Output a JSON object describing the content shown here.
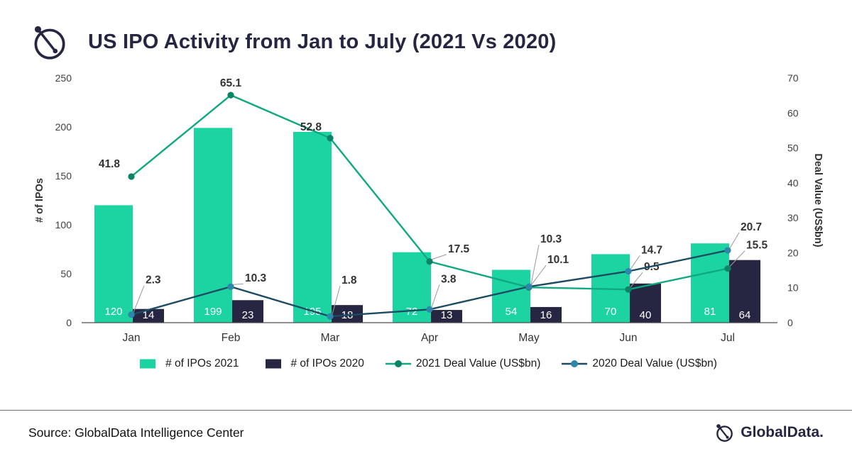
{
  "header": {
    "title": "US IPO Activity from Jan to July (2021 Vs 2020)"
  },
  "chart_data": {
    "type": "combo",
    "categories": [
      "Jan",
      "Feb",
      "Mar",
      "Apr",
      "May",
      "Jun",
      "Jul"
    ],
    "series": [
      {
        "name": "# of IPOs 2021",
        "type": "bar",
        "axis": "left",
        "color": "#1BD4A2",
        "values": [
          120,
          199,
          195,
          72,
          54,
          70,
          81
        ]
      },
      {
        "name": "# of IPOs 2020",
        "type": "bar",
        "axis": "left",
        "color": "#262642",
        "values": [
          14,
          23,
          18,
          13,
          16,
          40,
          64
        ]
      },
      {
        "name": "2021 Deal Value (US$bn)",
        "type": "line",
        "axis": "right",
        "color": "#0FA880",
        "marker_color": "#0B8465",
        "values": [
          41.8,
          65.1,
          52.8,
          17.5,
          10.1,
          9.5,
          15.5
        ]
      },
      {
        "name": "2020 Deal Value (US$bn)",
        "type": "line",
        "axis": "right",
        "color": "#1D4B63",
        "marker_color": "#2E86AB",
        "values": [
          2.3,
          10.3,
          1.8,
          3.8,
          10.3,
          14.7,
          20.7
        ]
      }
    ],
    "left_axis": {
      "label": "# of IPOs",
      "min": 0,
      "max": 250,
      "step": 50
    },
    "right_axis": {
      "label": "Deal Value (US$bn)",
      "min": 0,
      "max": 70,
      "step": 10
    },
    "grid": false,
    "legend_position": "bottom"
  },
  "footer": {
    "source_label": "Source: GlobalData Intelligence Center",
    "brand": "GlobalData."
  }
}
